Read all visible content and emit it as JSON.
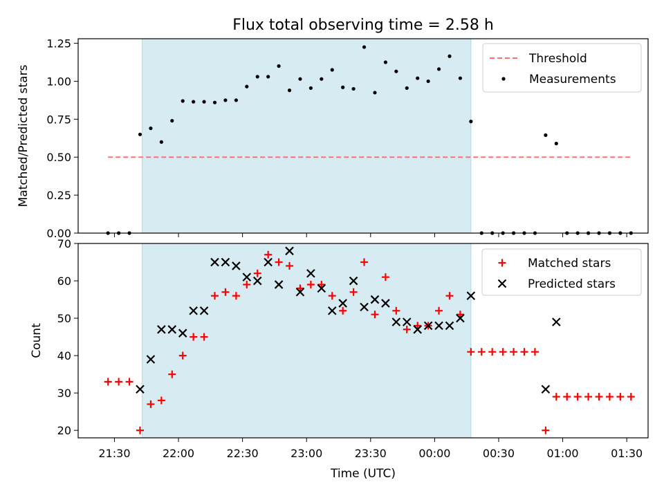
{
  "title": "Flux total observing time = 2.58 h",
  "colors": {
    "threshold": "#ff7070",
    "measurement": "#000000",
    "matched": "#ff0000",
    "predicted": "#000000",
    "span_fill": "#add8e6",
    "axes": "#000000"
  },
  "chart_data": [
    {
      "type": "scatter",
      "ylabel": "Matched/Predicted stars",
      "ylim": [
        0,
        1.28
      ],
      "yticks": [
        0,
        0.25,
        0.5,
        0.75,
        1.0,
        1.25
      ],
      "ytick_labels": [
        "0.00",
        "0.25",
        "0.50",
        "0.75",
        "1.00",
        "1.25"
      ],
      "xlim": [
        "21:13",
        "01:40"
      ],
      "observing_span": [
        "21:43",
        "00:17"
      ],
      "threshold": {
        "name": "Threshold",
        "y": 0.5,
        "x_range": [
          "21:27",
          "01:32"
        ]
      },
      "legend": {
        "position": "top-right",
        "entries": [
          "Threshold",
          "Measurements"
        ]
      },
      "series": [
        {
          "name": "Measurements",
          "points": [
            [
              "21:27",
              0
            ],
            [
              "21:32",
              0
            ],
            [
              "21:37",
              0
            ],
            [
              "21:42",
              0.65
            ],
            [
              "21:47",
              0.69
            ],
            [
              "21:52",
              0.6
            ],
            [
              "21:57",
              0.74
            ],
            [
              "22:02",
              0.87
            ],
            [
              "22:07",
              0.865
            ],
            [
              "22:12",
              0.865
            ],
            [
              "22:17",
              0.86
            ],
            [
              "22:22",
              0.875
            ],
            [
              "22:27",
              0.875
            ],
            [
              "22:32",
              0.965
            ],
            [
              "22:37",
              1.03
            ],
            [
              "22:42",
              1.03
            ],
            [
              "22:47",
              1.1
            ],
            [
              "22:52",
              0.94
            ],
            [
              "22:57",
              1.015
            ],
            [
              "23:02",
              0.955
            ],
            [
              "23:07",
              1.015
            ],
            [
              "23:12",
              1.075
            ],
            [
              "23:17",
              0.96
            ],
            [
              "23:22",
              0.95
            ],
            [
              "23:27",
              1.225
            ],
            [
              "23:32",
              0.925
            ],
            [
              "23:37",
              1.125
            ],
            [
              "23:42",
              1.065
            ],
            [
              "23:47",
              0.955
            ],
            [
              "23:52",
              1.02
            ],
            [
              "23:57",
              1.0
            ],
            [
              "00:02",
              1.08
            ],
            [
              "00:07",
              1.165
            ],
            [
              "00:12",
              1.02
            ],
            [
              "00:17",
              0.735
            ],
            [
              "00:22",
              0
            ],
            [
              "00:27",
              0
            ],
            [
              "00:32",
              0
            ],
            [
              "00:37",
              0
            ],
            [
              "00:42",
              0
            ],
            [
              "00:47",
              0
            ],
            [
              "00:52",
              0.645
            ],
            [
              "00:57",
              0.59
            ],
            [
              "01:02",
              0
            ],
            [
              "01:07",
              0
            ],
            [
              "01:12",
              0
            ],
            [
              "01:17",
              0
            ],
            [
              "01:22",
              0
            ],
            [
              "01:27",
              0
            ],
            [
              "01:32",
              0
            ]
          ]
        }
      ]
    },
    {
      "type": "scatter",
      "ylabel": "Count",
      "xlabel": "Time (UTC)",
      "ylim": [
        18,
        70
      ],
      "yticks": [
        20,
        30,
        40,
        50,
        60,
        70
      ],
      "ytick_labels": [
        "20",
        "30",
        "40",
        "50",
        "60",
        "70"
      ],
      "xlim": [
        "21:13",
        "01:40"
      ],
      "xticks": [
        "21:30",
        "22:00",
        "22:30",
        "23:00",
        "23:30",
        "00:00",
        "00:30",
        "01:00",
        "01:30"
      ],
      "xtick_labels": [
        "21:30",
        "22:00",
        "22:30",
        "23:00",
        "23:30",
        "00:00",
        "00:30",
        "01:00",
        "01:30"
      ],
      "observing_span": [
        "21:43",
        "00:17"
      ],
      "legend": {
        "position": "top-right",
        "entries": [
          "Matched stars",
          "Predicted stars"
        ]
      },
      "series": [
        {
          "name": "Matched stars",
          "points": [
            [
              "21:27",
              33
            ],
            [
              "21:32",
              33
            ],
            [
              "21:37",
              33
            ],
            [
              "21:42",
              20
            ],
            [
              "21:47",
              27
            ],
            [
              "21:52",
              28
            ],
            [
              "21:57",
              35
            ],
            [
              "22:02",
              40
            ],
            [
              "22:07",
              45
            ],
            [
              "22:12",
              45
            ],
            [
              "22:17",
              56
            ],
            [
              "22:22",
              57
            ],
            [
              "22:27",
              56
            ],
            [
              "22:32",
              59
            ],
            [
              "22:37",
              62
            ],
            [
              "22:42",
              67
            ],
            [
              "22:47",
              65
            ],
            [
              "22:52",
              64
            ],
            [
              "22:57",
              58
            ],
            [
              "23:02",
              59
            ],
            [
              "23:07",
              59
            ],
            [
              "23:12",
              56
            ],
            [
              "23:17",
              52
            ],
            [
              "23:22",
              57
            ],
            [
              "23:27",
              65
            ],
            [
              "23:32",
              51
            ],
            [
              "23:37",
              61
            ],
            [
              "23:42",
              52
            ],
            [
              "23:47",
              47
            ],
            [
              "23:52",
              48
            ],
            [
              "23:57",
              48
            ],
            [
              "00:02",
              52
            ],
            [
              "00:07",
              56
            ],
            [
              "00:12",
              51
            ],
            [
              "00:17",
              41
            ],
            [
              "00:22",
              41
            ],
            [
              "00:27",
              41
            ],
            [
              "00:32",
              41
            ],
            [
              "00:37",
              41
            ],
            [
              "00:42",
              41
            ],
            [
              "00:47",
              41
            ],
            [
              "00:52",
              20
            ],
            [
              "00:57",
              29
            ],
            [
              "01:02",
              29
            ],
            [
              "01:07",
              29
            ],
            [
              "01:12",
              29
            ],
            [
              "01:17",
              29
            ],
            [
              "01:22",
              29
            ],
            [
              "01:27",
              29
            ],
            [
              "01:32",
              29
            ]
          ]
        },
        {
          "name": "Predicted stars",
          "points": [
            [
              "21:42",
              31
            ],
            [
              "21:47",
              39
            ],
            [
              "21:52",
              47
            ],
            [
              "21:57",
              47
            ],
            [
              "22:02",
              46
            ],
            [
              "22:07",
              52
            ],
            [
              "22:12",
              52
            ],
            [
              "22:17",
              65
            ],
            [
              "22:22",
              65
            ],
            [
              "22:27",
              64
            ],
            [
              "22:32",
              61
            ],
            [
              "22:37",
              60
            ],
            [
              "22:42",
              65
            ],
            [
              "22:47",
              59
            ],
            [
              "22:52",
              68
            ],
            [
              "22:57",
              57
            ],
            [
              "23:02",
              62
            ],
            [
              "23:07",
              58
            ],
            [
              "23:12",
              52
            ],
            [
              "23:17",
              54
            ],
            [
              "23:22",
              60
            ],
            [
              "23:27",
              53
            ],
            [
              "23:32",
              55
            ],
            [
              "23:37",
              54
            ],
            [
              "23:42",
              49
            ],
            [
              "23:47",
              49
            ],
            [
              "23:52",
              47
            ],
            [
              "23:57",
              48
            ],
            [
              "00:02",
              48
            ],
            [
              "00:07",
              48
            ],
            [
              "00:12",
              50
            ],
            [
              "00:17",
              56
            ],
            [
              "00:52",
              31
            ],
            [
              "00:57",
              49
            ]
          ]
        }
      ]
    }
  ]
}
